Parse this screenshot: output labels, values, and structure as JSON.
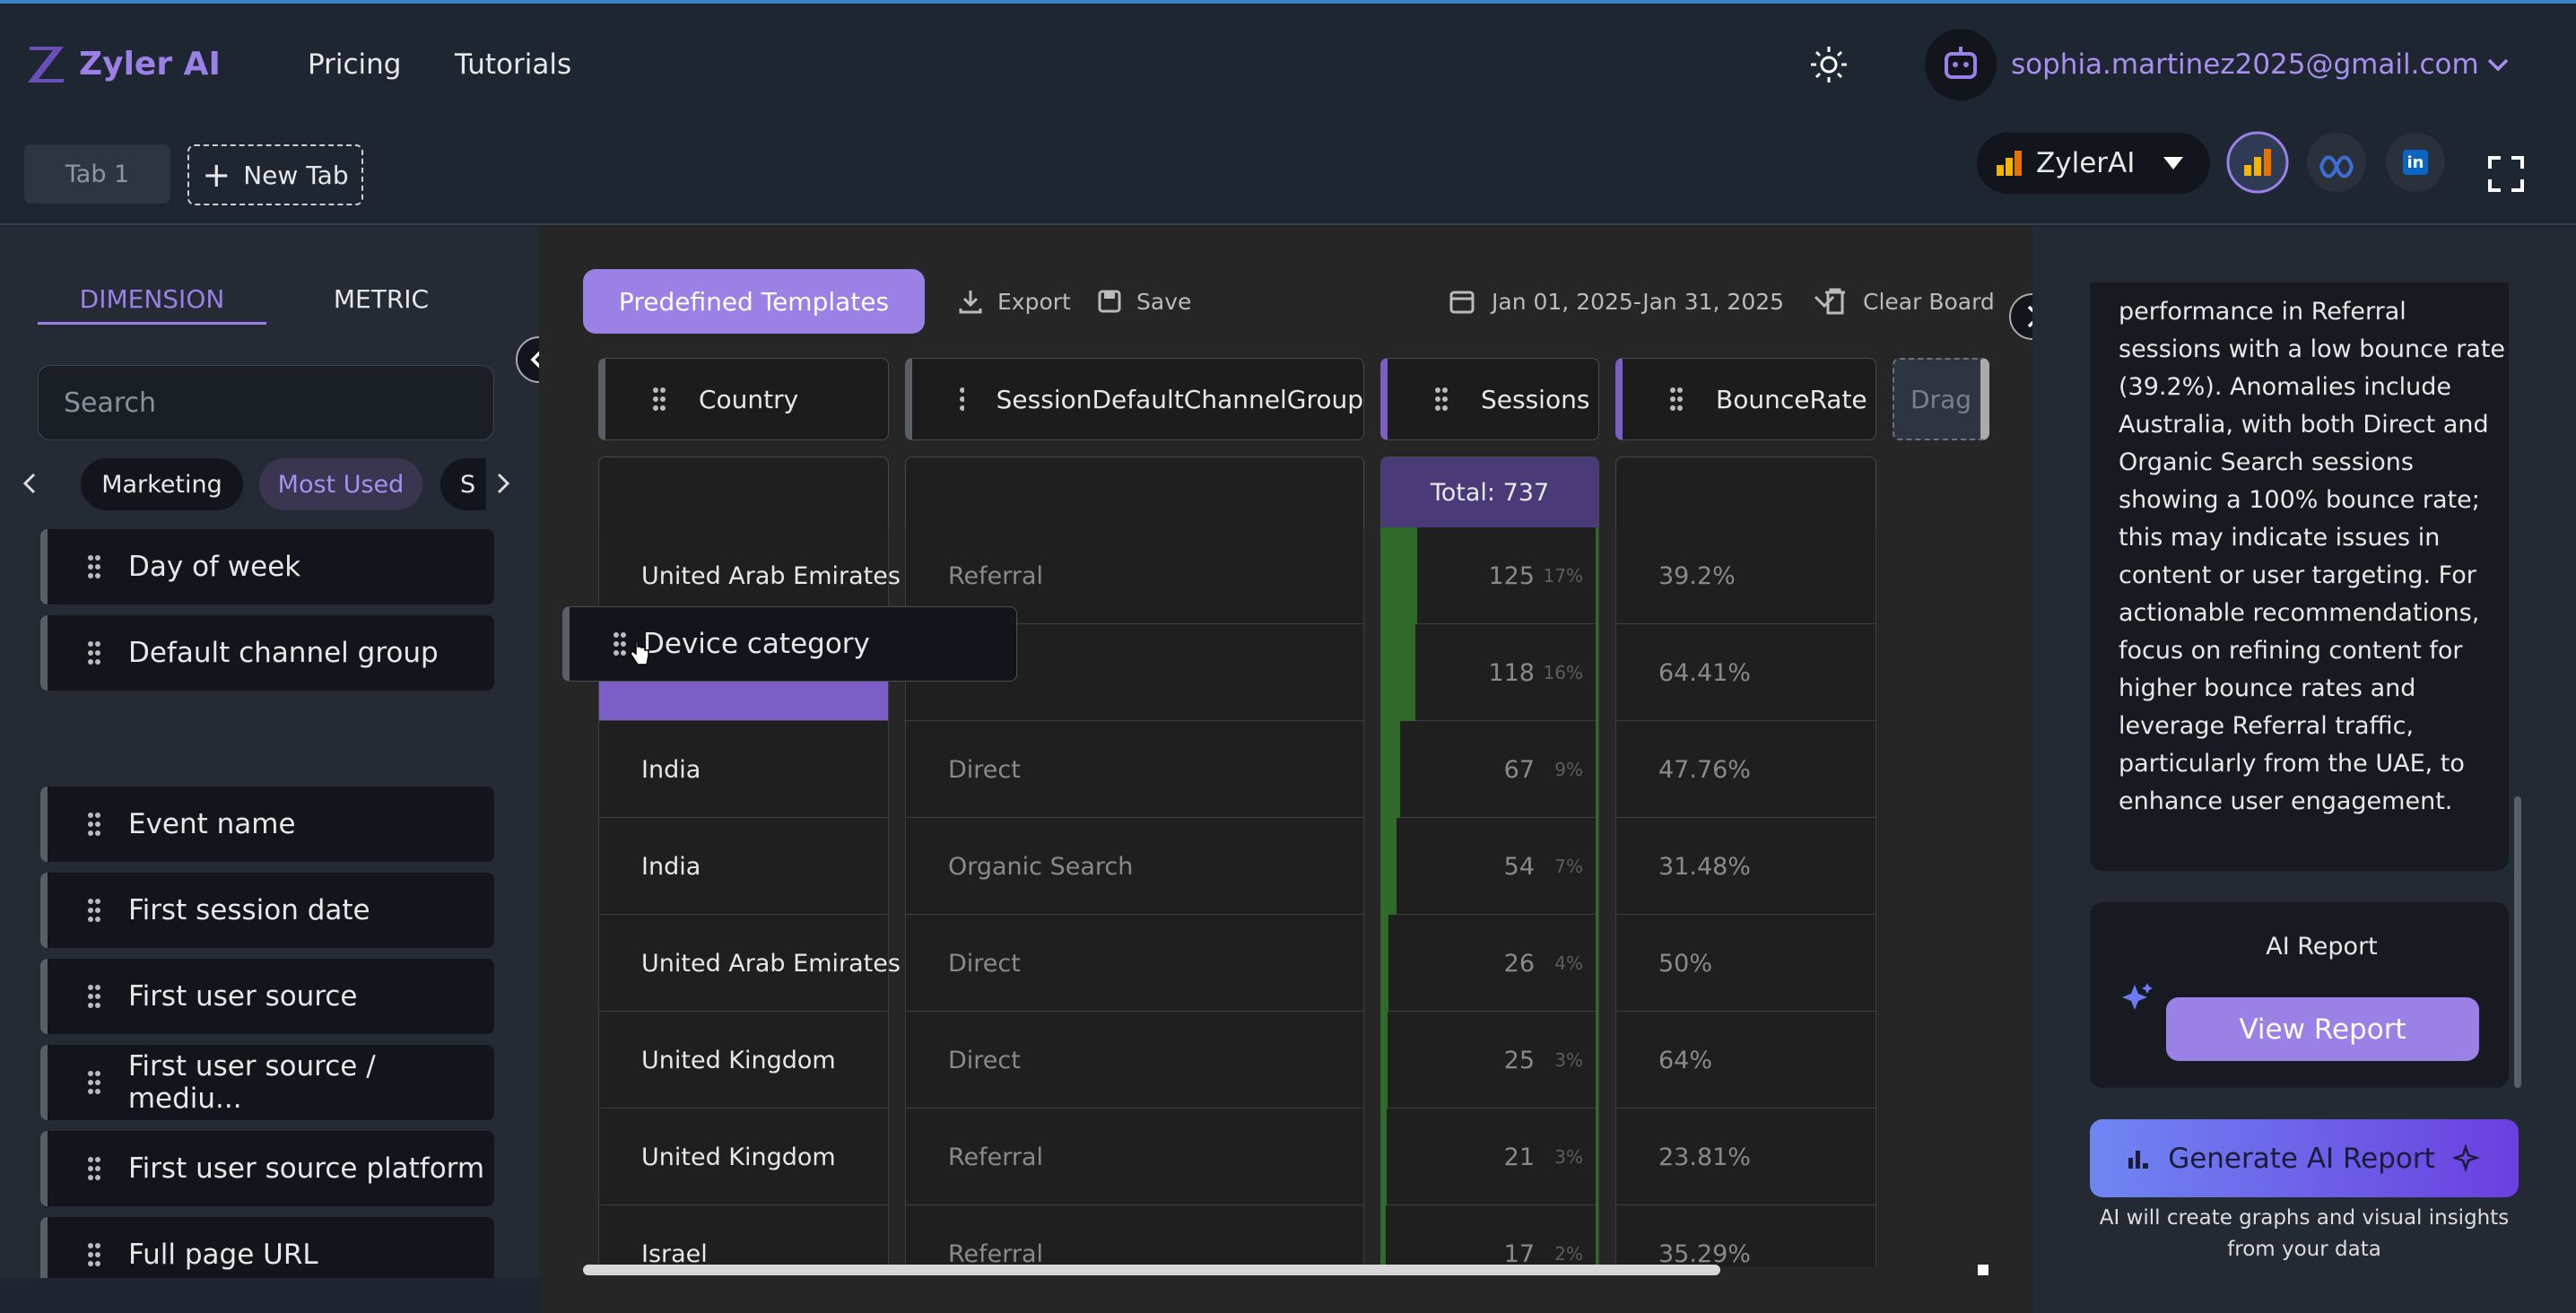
{
  "header": {
    "logo": "Zyler AI",
    "nav": [
      "Pricing",
      "Tutorials"
    ],
    "email": "sophia.martinez2025@gmail.com"
  },
  "tabs": [
    "Tab 1"
  ],
  "new_tab": "New Tab",
  "account": "ZylerAI",
  "sidebar": {
    "tabs": [
      "DIMENSION",
      "METRIC"
    ],
    "search_placeholder": "Search",
    "chips": [
      "Marketing",
      "Most Used",
      "S"
    ],
    "groups": [
      [
        "Day of week",
        "Default channel group"
      ],
      [
        "Event name",
        "First session date",
        "First user source",
        "First user source / mediu...",
        "First user source platform",
        "Full page URL"
      ]
    ]
  },
  "drag_item": "Device category",
  "toolbar": {
    "template_button": "Predefined Templates",
    "export": "Export",
    "save": "Save",
    "date_range": "Jan 01, 2025-Jan 31, 2025",
    "clear": "Clear Board"
  },
  "table": {
    "columns": [
      "Country",
      "SessionDefaultChannelGroup",
      "Sessions",
      "BounceRate"
    ],
    "drop_hint": "Drag",
    "total": {
      "value": 737,
      "label": "Total: 737"
    },
    "rows": [
      {
        "country": "United Arab Emirates",
        "channel": "Referral",
        "sessions": 125,
        "share": "17%",
        "bounce_rate": "39.2%"
      },
      {
        "sessions": 118,
        "share": "16%",
        "bounce_rate": "64.41%"
      },
      {
        "country": "India",
        "channel": "Direct",
        "sessions": 67,
        "share": "9%",
        "bounce_rate": "47.76%"
      },
      {
        "country": "India",
        "channel": "Organic Search",
        "sessions": 54,
        "share": "7%",
        "bounce_rate": "31.48%"
      },
      {
        "country": "United Arab Emirates",
        "channel": "Direct",
        "sessions": 26,
        "share": "4%",
        "bounce_rate": "50%"
      },
      {
        "country": "United Kingdom",
        "channel": "Direct",
        "sessions": 25,
        "share": "3%",
        "bounce_rate": "64%"
      },
      {
        "country": "United Kingdom",
        "channel": "Referral",
        "sessions": 21,
        "share": "3%",
        "bounce_rate": "23.81%"
      },
      {
        "country": "Israel",
        "channel": "Referral",
        "sessions": 17,
        "share": "2%",
        "bounce_rate": "35.29%"
      }
    ]
  },
  "insight": {
    "lines": [
      "performance in Referral",
      "sessions with a low bounce rate",
      "(39.2%). Anomalies include",
      "Australia, with both Direct and",
      "Organic Search sessions",
      "showing a 100% bounce rate;",
      "this may indicate issues in",
      "content or user targeting. For",
      "actionable recommendations,",
      "focus on refining content for",
      "higher bounce rates and",
      "leverage Referral traffic,",
      "particularly from the UAE, to",
      "enhance user engagement."
    ]
  },
  "ai_report": {
    "title": "AI Report",
    "button": "View Report"
  },
  "generate": {
    "button": "Generate AI Report",
    "caption": "AI will create graphs and visual insights from your data"
  }
}
